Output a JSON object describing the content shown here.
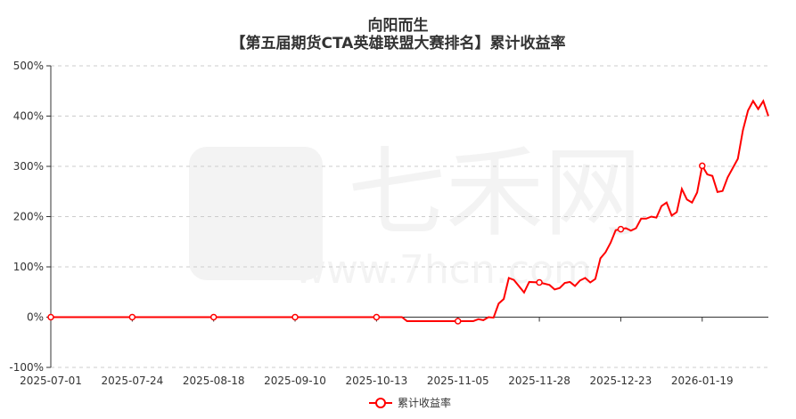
{
  "title": "向阳而生",
  "subtitle": "【第五届期货CTA英雄联盟大赛排名】累计收益率",
  "watermark": "七禾网 www.7hcn.com",
  "chart_data": {
    "type": "line",
    "title": "向阳而生",
    "subtitle": "【第五届期货CTA英雄联盟大赛排名】累计收益率",
    "x_ticks": [
      {
        "index": 0,
        "label": "2025-07-01"
      },
      {
        "index": 16,
        "label": "2025-07-24"
      },
      {
        "index": 32,
        "label": "2025-08-18"
      },
      {
        "index": 48,
        "label": "2025-09-10"
      },
      {
        "index": 64,
        "label": "2025-10-13"
      },
      {
        "index": 80,
        "label": "2025-11-05"
      },
      {
        "index": 96,
        "label": "2025-11-28"
      },
      {
        "index": 112,
        "label": "2025-12-23"
      },
      {
        "index": 128,
        "label": "2026-01-19"
      }
    ],
    "x_range": [
      0,
      141
    ],
    "ylim": [
      -100,
      500
    ],
    "y_ticks": [
      "-100%",
      "0%",
      "100%",
      "200%",
      "300%",
      "400%",
      "500%"
    ],
    "y_unit": "%",
    "grid": true,
    "legend_position": "bottom",
    "color": "#ff0000",
    "series": [
      {
        "name": "累计收益率",
        "points": [
          [
            0,
            0
          ],
          [
            69,
            0
          ],
          [
            70,
            -8
          ],
          [
            78,
            -8
          ],
          [
            83,
            -8
          ],
          [
            84,
            -4
          ],
          [
            85,
            -6
          ],
          [
            86,
            0
          ],
          [
            87,
            -1
          ],
          [
            88,
            27
          ],
          [
            89,
            36
          ],
          [
            90,
            78
          ],
          [
            91,
            74
          ],
          [
            93,
            49
          ],
          [
            94,
            70
          ],
          [
            96,
            69
          ],
          [
            98,
            64
          ],
          [
            99,
            55
          ],
          [
            100,
            58
          ],
          [
            101,
            68
          ],
          [
            102,
            70
          ],
          [
            103,
            62
          ],
          [
            104,
            73
          ],
          [
            105,
            78
          ],
          [
            106,
            69
          ],
          [
            107,
            76
          ],
          [
            108,
            117
          ],
          [
            109,
            129
          ],
          [
            110,
            148
          ],
          [
            111,
            173
          ],
          [
            112,
            175
          ],
          [
            113,
            177
          ],
          [
            114,
            172
          ],
          [
            115,
            177
          ],
          [
            116,
            196
          ],
          [
            117,
            196
          ],
          [
            118,
            200
          ],
          [
            119,
            198
          ],
          [
            120,
            221
          ],
          [
            121,
            228
          ],
          [
            122,
            202
          ],
          [
            123,
            209
          ],
          [
            124,
            255
          ],
          [
            125,
            234
          ],
          [
            126,
            228
          ],
          [
            127,
            248
          ],
          [
            128,
            301
          ],
          [
            129,
            284
          ],
          [
            130,
            281
          ],
          [
            131,
            249
          ],
          [
            132,
            251
          ],
          [
            133,
            278
          ],
          [
            135,
            315
          ],
          [
            136,
            372
          ],
          [
            137,
            411
          ],
          [
            138,
            430
          ],
          [
            139,
            414
          ],
          [
            140,
            430
          ],
          [
            141,
            400
          ]
        ]
      }
    ]
  }
}
